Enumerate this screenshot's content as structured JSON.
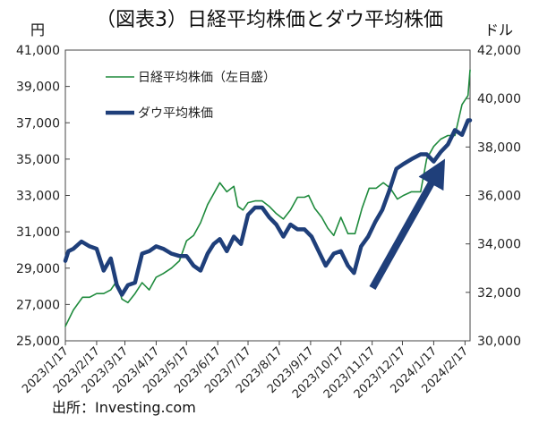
{
  "title": "（図表3）日経平均株価とダウ平均株価",
  "source": "出所：Investing.com",
  "chart_data": {
    "type": "line",
    "title": "（図表3）日経平均株価とダウ平均株価",
    "left_axis": {
      "unit": "円",
      "ylim": [
        25000,
        41000
      ],
      "ticks": [
        25000,
        27000,
        29000,
        31000,
        33000,
        35000,
        37000,
        39000,
        41000
      ],
      "tick_labels": [
        "25,000",
        "27,000",
        "29,000",
        "31,000",
        "33,000",
        "35,000",
        "37,000",
        "39,000",
        "41,000"
      ]
    },
    "right_axis": {
      "unit": "ドル",
      "ylim": [
        30000,
        42000
      ],
      "ticks": [
        30000,
        32000,
        34000,
        36000,
        38000,
        40000,
        42000
      ],
      "tick_labels": [
        "30,000",
        "32,000",
        "34,000",
        "36,000",
        "38,000",
        "40,000",
        "42,000"
      ]
    },
    "x_axis": {
      "start": "2023-01-17",
      "end": "2024-02-22",
      "tick_dates": [
        "2023-01-17",
        "2023-02-17",
        "2023-03-17",
        "2023-04-17",
        "2023-05-17",
        "2023-06-17",
        "2023-07-17",
        "2023-08-17",
        "2023-09-17",
        "2023-10-17",
        "2023-11-17",
        "2023-12-17",
        "2024-01-17",
        "2024-02-17"
      ],
      "tick_labels": [
        "2023/1/17",
        "2023/2/17",
        "2023/3/17",
        "2023/4/17",
        "2023/5/17",
        "2023/6/17",
        "2023/7/17",
        "2023/8/17",
        "2023/9/17",
        "2023/10/17",
        "2023/11/17",
        "2023/12/17",
        "2024/1/17",
        "2024/2/17"
      ]
    },
    "legend_position": "top-left",
    "grid": false,
    "series": [
      {
        "name": "日経平均株価（左目盛）",
        "axis": "left",
        "color": "#1e8a3c",
        "x": [
          "2023-01-17",
          "2023-01-25",
          "2023-02-03",
          "2023-02-10",
          "2023-02-17",
          "2023-02-24",
          "2023-03-03",
          "2023-03-09",
          "2023-03-14",
          "2023-03-20",
          "2023-03-27",
          "2023-04-03",
          "2023-04-10",
          "2023-04-17",
          "2023-04-24",
          "2023-05-02",
          "2023-05-10",
          "2023-05-17",
          "2023-05-24",
          "2023-05-31",
          "2023-06-07",
          "2023-06-13",
          "2023-06-19",
          "2023-06-26",
          "2023-07-03",
          "2023-07-07",
          "2023-07-12",
          "2023-07-17",
          "2023-07-24",
          "2023-07-31",
          "2023-08-07",
          "2023-08-14",
          "2023-08-21",
          "2023-08-28",
          "2023-09-04",
          "2023-09-11",
          "2023-09-15",
          "2023-09-21",
          "2023-09-28",
          "2023-10-04",
          "2023-10-10",
          "2023-10-17",
          "2023-10-24",
          "2023-10-31",
          "2023-11-07",
          "2023-11-14",
          "2023-11-21",
          "2023-11-28",
          "2023-12-05",
          "2023-12-12",
          "2023-12-18",
          "2023-12-26",
          "2024-01-04",
          "2024-01-10",
          "2024-01-17",
          "2024-01-24",
          "2024-01-31",
          "2024-02-07",
          "2024-02-14",
          "2024-02-20",
          "2024-02-22"
        ],
        "y": [
          25800,
          26700,
          27400,
          27400,
          27600,
          27600,
          27800,
          28300,
          27300,
          27100,
          27600,
          28200,
          27800,
          28500,
          28700,
          29000,
          29400,
          30500,
          30800,
          31500,
          32500,
          33100,
          33700,
          33200,
          33500,
          32400,
          32200,
          32600,
          32700,
          32700,
          32400,
          32000,
          31700,
          32200,
          32900,
          32900,
          33000,
          32300,
          31800,
          31200,
          30800,
          31800,
          30900,
          30900,
          32300,
          33400,
          33400,
          33700,
          33400,
          32800,
          33000,
          33200,
          33200,
          35000,
          35700,
          36100,
          36300,
          36300,
          38000,
          38500,
          39900
        ]
      },
      {
        "name": "ダウ平均株価",
        "axis": "right",
        "color": "#1f3f7a",
        "x": [
          "2023-01-17",
          "2023-01-20",
          "2023-01-25",
          "2023-02-02",
          "2023-02-10",
          "2023-02-17",
          "2023-02-24",
          "2023-03-03",
          "2023-03-09",
          "2023-03-14",
          "2023-03-20",
          "2023-03-27",
          "2023-04-03",
          "2023-04-10",
          "2023-04-17",
          "2023-04-24",
          "2023-05-02",
          "2023-05-10",
          "2023-05-17",
          "2023-05-24",
          "2023-05-31",
          "2023-06-07",
          "2023-06-13",
          "2023-06-19",
          "2023-06-26",
          "2023-07-03",
          "2023-07-10",
          "2023-07-17",
          "2023-07-24",
          "2023-07-31",
          "2023-08-07",
          "2023-08-14",
          "2023-08-21",
          "2023-08-28",
          "2023-09-04",
          "2023-09-11",
          "2023-09-18",
          "2023-09-25",
          "2023-10-02",
          "2023-10-10",
          "2023-10-17",
          "2023-10-24",
          "2023-10-30",
          "2023-11-06",
          "2023-11-13",
          "2023-11-20",
          "2023-11-27",
          "2023-12-04",
          "2023-12-11",
          "2023-12-18",
          "2023-12-26",
          "2024-01-04",
          "2024-01-10",
          "2024-01-17",
          "2024-01-24",
          "2024-01-31",
          "2024-02-07",
          "2024-02-14",
          "2024-02-20",
          "2024-02-22"
        ],
        "y": [
          33300,
          33700,
          33800,
          34100,
          33900,
          33800,
          32900,
          33400,
          32300,
          31900,
          32300,
          32400,
          33600,
          33700,
          33900,
          33800,
          33600,
          33500,
          33500,
          33100,
          32900,
          33600,
          34000,
          34200,
          33700,
          34300,
          34000,
          35200,
          35500,
          35500,
          35100,
          34800,
          34300,
          34800,
          34600,
          34600,
          34300,
          33700,
          33100,
          33600,
          33700,
          33100,
          32800,
          33900,
          34300,
          34900,
          35400,
          36200,
          37100,
          37300,
          37500,
          37700,
          37700,
          37400,
          37800,
          38100,
          38700,
          38500,
          39100,
          39100
        ]
      }
    ]
  }
}
